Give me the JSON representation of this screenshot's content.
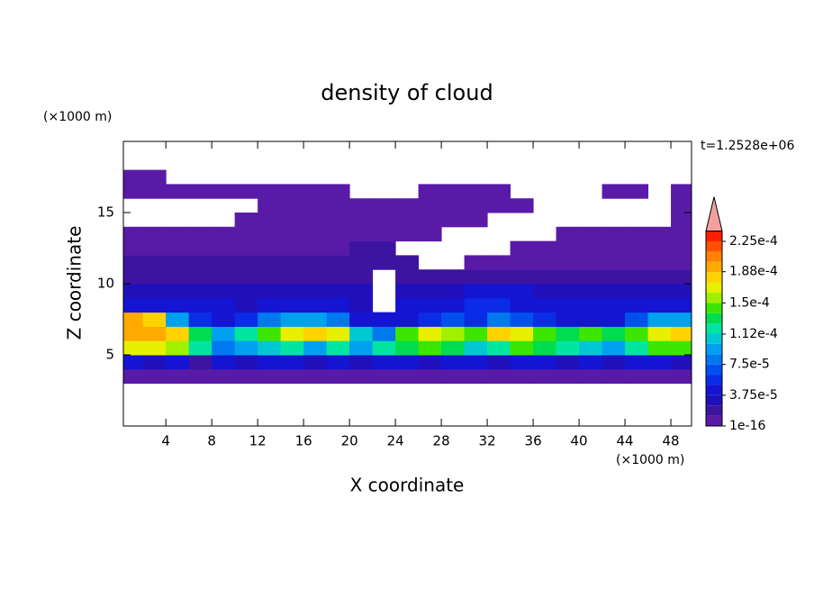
{
  "chart_data": {
    "type": "contour",
    "title": "density of cloud",
    "x_label": "X coordinate",
    "y_label": "Z coordinate",
    "x_unit": "(×1000 m)",
    "y_unit": "(×1000 m)",
    "time_label": "t=1.2528e+06",
    "xlim": [
      0.3,
      49.8
    ],
    "ylim": [
      0,
      20
    ],
    "xticks": [
      4,
      8,
      12,
      16,
      20,
      24,
      28,
      32,
      36,
      40,
      44,
      48
    ],
    "yticks": [
      5,
      10,
      15
    ],
    "x": [
      1,
      3,
      5,
      7,
      9,
      11,
      13,
      15,
      17,
      19,
      21,
      23,
      25,
      27,
      29,
      31,
      33,
      35,
      37,
      39,
      41,
      43,
      45,
      47,
      49
    ],
    "y": [
      3.5,
      4.5,
      5.5,
      6.5,
      7.5,
      8.5,
      9.5,
      10.5,
      11.5,
      12.5,
      13.5,
      14.5,
      15.5,
      16.5,
      17.5
    ],
    "z": [
      [
        5e-06,
        5e-06,
        5e-06,
        5e-06,
        5e-06,
        5e-06,
        5e-06,
        5e-06,
        5e-06,
        5e-06,
        5e-06,
        5e-06,
        5e-06,
        5e-06,
        5e-06,
        5e-06,
        5e-06,
        5e-06,
        5e-06,
        5e-06,
        5e-06,
        5e-06,
        5e-06,
        5e-06,
        5e-06
      ],
      [
        4e-05,
        3e-05,
        4e-05,
        2e-05,
        4e-05,
        3e-05,
        4e-05,
        4e-05,
        3e-05,
        4e-05,
        3e-05,
        4e-05,
        4e-05,
        3e-05,
        4e-05,
        4e-05,
        3e-05,
        4e-05,
        4e-05,
        3e-05,
        4e-05,
        3e-05,
        4e-05,
        4e-05,
        3e-05
      ],
      [
        0.00017,
        0.00017,
        0.00016,
        0.00012,
        8e-05,
        0.0001,
        0.00011,
        0.00012,
        0.0001,
        0.00012,
        9e-05,
        0.00012,
        0.00013,
        0.00014,
        0.00013,
        0.00011,
        0.00012,
        0.00014,
        0.00013,
        0.00012,
        0.00011,
        0.0001,
        0.00012,
        0.00014,
        0.00015
      ],
      [
        0.00019,
        0.00019,
        0.00018,
        0.00013,
        0.0001,
        0.00012,
        0.00014,
        0.00017,
        0.00018,
        0.00017,
        0.00011,
        8e-05,
        0.00014,
        0.00017,
        0.00016,
        0.00014,
        0.00018,
        0.00017,
        0.00015,
        0.00013,
        0.00014,
        0.00013,
        0.00015,
        0.00017,
        0.00018
      ],
      [
        0.00019,
        0.00018,
        0.0001,
        6e-05,
        5e-05,
        6e-05,
        8e-05,
        0.0001,
        9e-05,
        8e-05,
        5e-05,
        4e-05,
        5e-05,
        6e-05,
        7e-05,
        6e-05,
        8e-05,
        7e-05,
        6e-05,
        5e-05,
        4e-05,
        5e-05,
        7e-05,
        9e-05,
        0.0001
      ],
      [
        5e-05,
        5e-05,
        4e-05,
        4e-05,
        4e-05,
        3e-05,
        4e-05,
        4e-05,
        4e-05,
        4e-05,
        3e-05,
        null,
        4e-05,
        4e-05,
        4e-05,
        6e-05,
        6e-05,
        5e-05,
        4e-05,
        4e-05,
        4e-05,
        4e-05,
        4e-05,
        4e-05,
        5e-05
      ],
      [
        3e-05,
        3e-05,
        3e-05,
        3e-05,
        3e-05,
        3e-05,
        3e-05,
        3e-05,
        3e-05,
        3e-05,
        3e-05,
        null,
        3e-05,
        3e-05,
        3e-05,
        4e-05,
        4e-05,
        4e-05,
        3e-05,
        3e-05,
        3e-05,
        3e-05,
        3e-05,
        3e-05,
        3e-05
      ],
      [
        2e-05,
        2e-05,
        2e-05,
        2e-05,
        2e-05,
        2e-05,
        2e-05,
        2e-05,
        2e-05,
        2e-05,
        2e-05,
        null,
        2e-05,
        2e-05,
        2e-05,
        2e-05,
        2e-05,
        2e-05,
        2e-05,
        2e-05,
        2e-05,
        2e-05,
        2e-05,
        2e-05,
        2e-05
      ],
      [
        1.5e-05,
        1.5e-05,
        1.5e-05,
        1.5e-05,
        1.5e-05,
        1.5e-05,
        1.5e-05,
        1.5e-05,
        1.5e-05,
        1.5e-05,
        1.5e-05,
        1.5e-05,
        1.5e-05,
        null,
        null,
        1.2e-05,
        1.2e-05,
        1.2e-05,
        1.2e-05,
        1.2e-05,
        1.2e-05,
        1.2e-05,
        1.2e-05,
        1.2e-05,
        1.2e-05
      ],
      [
        8e-06,
        8e-06,
        8e-06,
        8e-06,
        8e-06,
        8e-06,
        8e-06,
        8e-06,
        8e-06,
        8e-06,
        1.5e-05,
        1.5e-05,
        null,
        null,
        null,
        null,
        null,
        8e-06,
        8e-06,
        8e-06,
        8e-06,
        8e-06,
        8e-06,
        8e-06,
        8e-06
      ],
      [
        5e-06,
        5e-06,
        5e-06,
        5e-06,
        5e-06,
        5e-06,
        5e-06,
        5e-06,
        5e-06,
        5e-06,
        1e-05,
        1e-05,
        8e-06,
        8e-06,
        null,
        null,
        null,
        null,
        null,
        5e-06,
        5e-06,
        5e-06,
        5e-06,
        5e-06,
        5e-06
      ],
      [
        null,
        null,
        null,
        null,
        null,
        5e-06,
        5e-06,
        5e-06,
        5e-06,
        5e-06,
        8e-06,
        8e-06,
        8e-06,
        8e-06,
        8e-06,
        8e-06,
        null,
        null,
        null,
        null,
        null,
        null,
        null,
        null,
        5e-06
      ],
      [
        null,
        null,
        null,
        null,
        null,
        null,
        5e-06,
        5e-06,
        5e-06,
        5e-06,
        5e-06,
        5e-06,
        5e-06,
        5e-06,
        5e-06,
        5e-06,
        5e-06,
        5e-06,
        null,
        null,
        null,
        null,
        null,
        null,
        5e-06
      ],
      [
        5e-06,
        5e-06,
        5e-06,
        5e-06,
        5e-06,
        5e-06,
        5e-06,
        5e-06,
        5e-06,
        5e-06,
        null,
        null,
        null,
        5e-06,
        5e-06,
        5e-06,
        5e-06,
        null,
        null,
        null,
        null,
        5e-06,
        5e-06,
        null,
        5e-06
      ],
      [
        5e-06,
        5e-06,
        null,
        null,
        null,
        null,
        null,
        null,
        null,
        null,
        null,
        null,
        null,
        null,
        null,
        null,
        null,
        null,
        null,
        null,
        null,
        null,
        null,
        null,
        null
      ]
    ],
    "colors": [
      "#5a1aa8",
      "#3c14a0",
      "#2010bc",
      "#1414d2",
      "#0a2ce6",
      "#0050f0",
      "#0078f0",
      "#00a0f0",
      "#00c8d2",
      "#00e6a0",
      "#00dc50",
      "#3ce600",
      "#a0f000",
      "#e6f000",
      "#ffd200",
      "#ffaa00",
      "#ff8200",
      "#ff5000",
      "#ff1e00"
    ],
    "over_color": "#f4a0a0",
    "colorbar_ticks": [
      {
        "value": 1e-16,
        "label": "1e-16"
      },
      {
        "value": 3.75e-05,
        "label": "3.75e-5"
      },
      {
        "value": 7.5e-05,
        "label": "7.5e-5"
      },
      {
        "value": 0.000112,
        "label": "1.12e-4"
      },
      {
        "value": 0.00015,
        "label": "1.5e-4"
      },
      {
        "value": 0.000188,
        "label": "1.88e-4"
      },
      {
        "value": 0.000225,
        "label": "2.25e-4"
      }
    ]
  }
}
